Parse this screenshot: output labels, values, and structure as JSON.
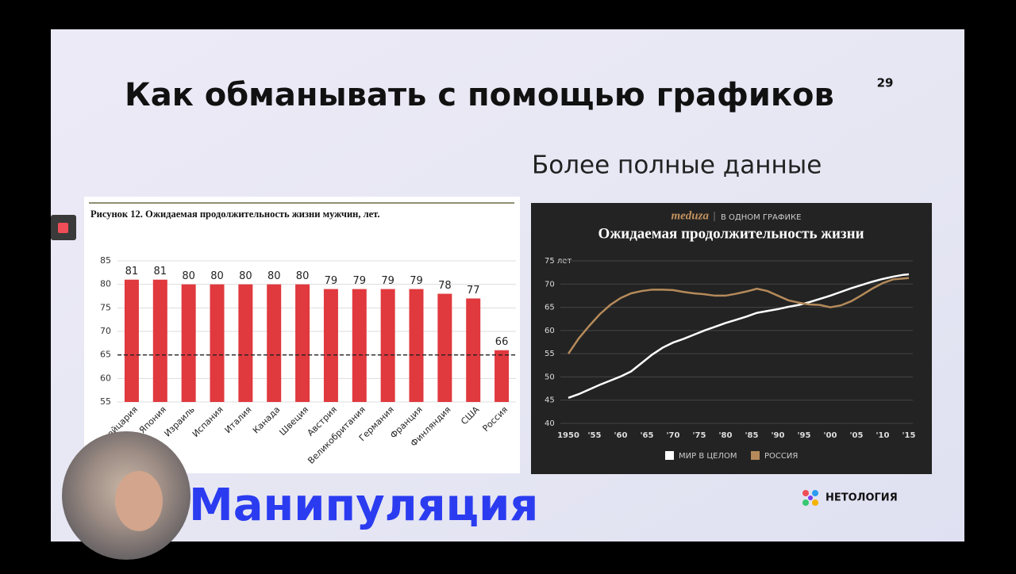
{
  "slide": {
    "title": "Как обманывать с помощью графиков",
    "page_number": "29",
    "subtitle": "Более полные данные",
    "bottom_text": "Манипуляция",
    "logo": "НЕТОЛОГИЯ"
  },
  "chart_data": [
    {
      "type": "bar",
      "title": "Рисунок 12. Ожидаемая продолжительность жизни мужчин, лет.",
      "categories": [
        "Швейцария",
        "Япония",
        "Израиль",
        "Испания",
        "Италия",
        "Канада",
        "Швеция",
        "Австрия",
        "Великобритания",
        "Германия",
        "Франция",
        "Финляндия",
        "США",
        "Россия"
      ],
      "values": [
        81,
        81,
        80,
        80,
        80,
        80,
        80,
        79,
        79,
        79,
        79,
        78,
        77,
        66
      ],
      "color": "#e0393e",
      "ylim": [
        55,
        85
      ],
      "yticks": [
        55,
        60,
        65,
        70,
        75,
        80,
        85
      ],
      "grid": true,
      "reference_line": 65
    },
    {
      "type": "line",
      "source": "meduza",
      "subtitle": "В ОДНОМ ГРАФИКЕ",
      "title": "Ожидаемая продолжительность жизни",
      "x": [
        1950,
        1952,
        1954,
        1956,
        1958,
        1960,
        1962,
        1964,
        1966,
        1968,
        1970,
        1972,
        1974,
        1976,
        1978,
        1980,
        1982,
        1984,
        1986,
        1988,
        1990,
        1992,
        1994,
        1996,
        1998,
        2000,
        2002,
        2004,
        2006,
        2008,
        2010,
        2012,
        2014,
        2015
      ],
      "series": [
        {
          "name": "МИР В ЦЕЛОМ",
          "color": "#ffffff",
          "values": [
            45.5,
            46.3,
            47.3,
            48.3,
            49.2,
            50.1,
            51.2,
            53,
            54.8,
            56.3,
            57.4,
            58.2,
            59.1,
            60,
            60.8,
            61.6,
            62.3,
            63,
            63.8,
            64.2,
            64.6,
            65.1,
            65.5,
            66.1,
            66.8,
            67.5,
            68.3,
            69.1,
            69.8,
            70.5,
            71.1,
            71.6,
            72,
            72.1
          ]
        },
        {
          "name": "РОССИЯ",
          "color": "#b58a5a",
          "values": [
            55,
            58.3,
            61,
            63.5,
            65.5,
            67,
            68,
            68.5,
            68.8,
            68.8,
            68.7,
            68.3,
            68,
            67.8,
            67.5,
            67.5,
            67.9,
            68.4,
            69,
            68.5,
            67.5,
            66.5,
            66,
            65.6,
            65.5,
            65,
            65.4,
            66.3,
            67.6,
            69,
            70.2,
            71,
            71.2,
            71.3
          ]
        }
      ],
      "xlim": [
        1950,
        2015
      ],
      "xticks": [
        1950,
        {
          "value": 1955,
          "label": "'55"
        },
        {
          "value": 1960,
          "label": "'60"
        },
        {
          "value": 1965,
          "label": "'65"
        },
        {
          "value": 1970,
          "label": "'70"
        },
        {
          "value": 1975,
          "label": "'75"
        },
        {
          "value": 1980,
          "label": "'80"
        },
        {
          "value": 1985,
          "label": "'85"
        },
        {
          "value": 1990,
          "label": "'90"
        },
        {
          "value": 1995,
          "label": "'95"
        },
        {
          "value": 2000,
          "label": "'00"
        },
        {
          "value": 2005,
          "label": "'05"
        },
        {
          "value": 2010,
          "label": "'10"
        },
        {
          "value": 2015,
          "label": "'15"
        }
      ],
      "ylim": [
        40,
        75
      ],
      "yticks": [
        40,
        45,
        50,
        55,
        60,
        65,
        70,
        {
          "value": 75,
          "label": "75 лет"
        }
      ],
      "grid": true
    }
  ]
}
